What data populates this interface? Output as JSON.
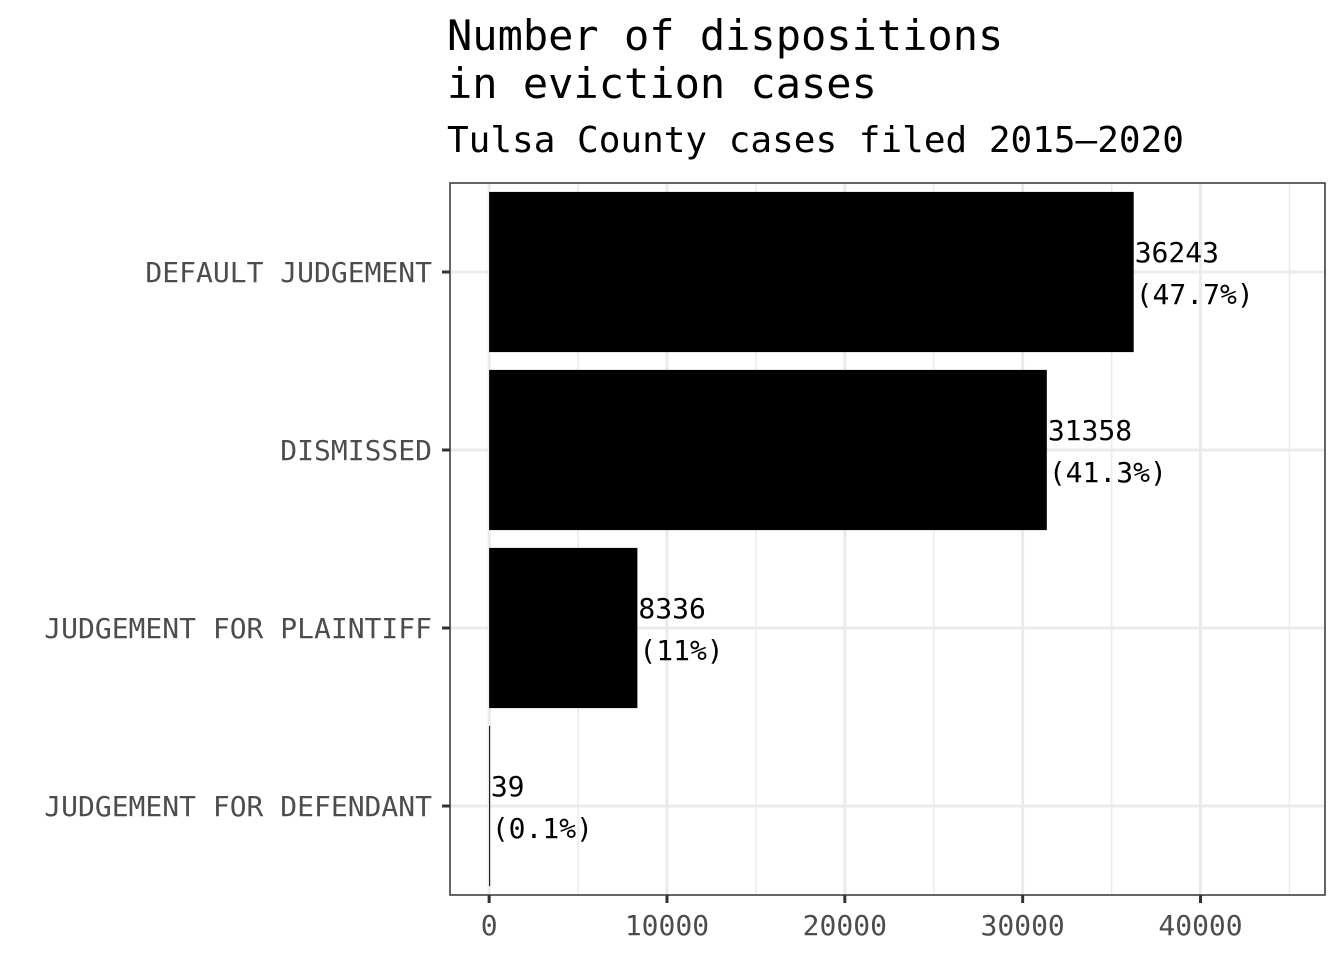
{
  "chart_data": {
    "type": "bar",
    "orientation": "horizontal",
    "title": [
      "Number of dispositions",
      "in eviction cases"
    ],
    "subtitle": "Tulsa County cases filed 2015–2020",
    "xlabel": "",
    "ylabel": "",
    "categories": [
      "DEFAULT JUDGEMENT",
      "DISMISSED",
      "JUDGEMENT FOR PLAINTIFF",
      "JUDGEMENT FOR DEFENDANT"
    ],
    "values": [
      36243,
      31358,
      8336,
      39
    ],
    "value_labels": [
      "36243",
      "31358",
      "8336",
      "39"
    ],
    "percent_labels": [
      "(47.7%)",
      "(41.3%)",
      "(11%)",
      "(0.1%)"
    ],
    "xlim": [
      -2200,
      47000
    ],
    "x_ticks": [
      0,
      10000,
      20000,
      30000,
      40000
    ],
    "x_tick_labels": [
      "0",
      "10000",
      "20000",
      "30000",
      "40000"
    ],
    "grid": true,
    "legend": "none",
    "bar_color": "#000000",
    "grid_color": "#ebebeb",
    "axis_color": "#333333",
    "tick_label_color": "#4d4d4d"
  }
}
